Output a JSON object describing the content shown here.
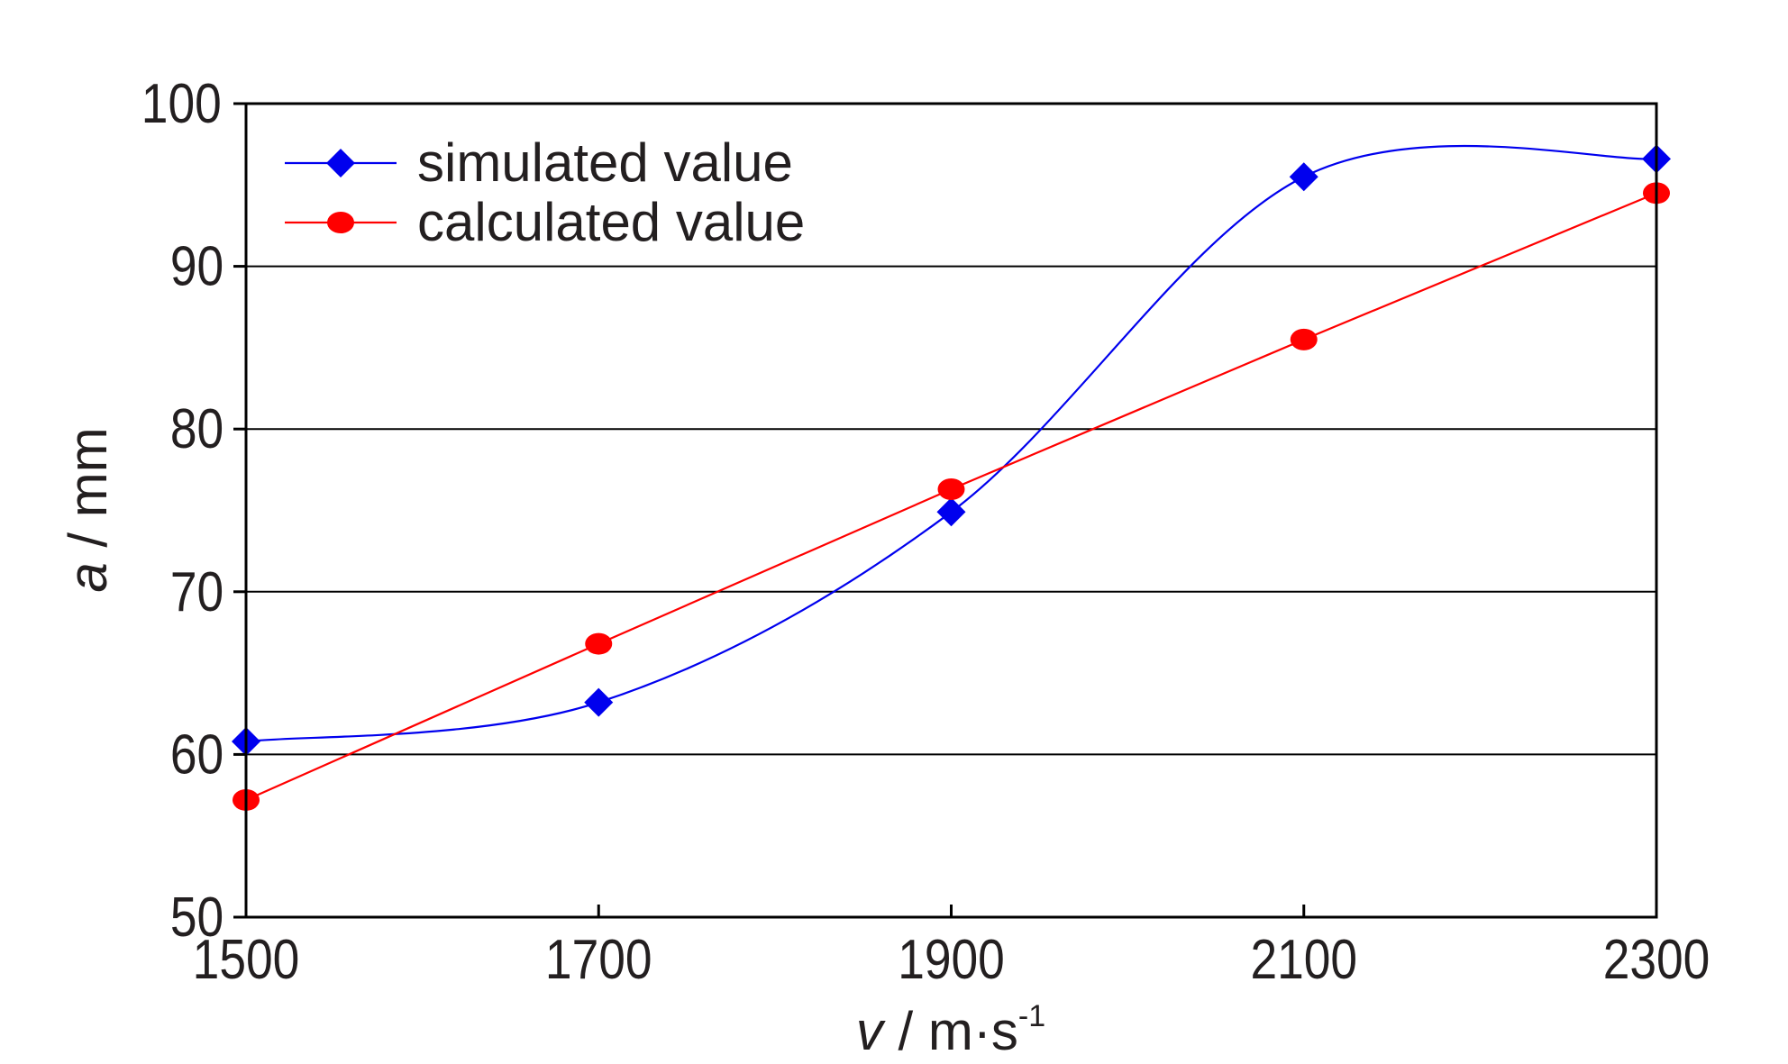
{
  "chart_data": {
    "type": "line",
    "title": "",
    "xlabel": {
      "symbol": "v",
      "unit": " / m·s",
      "exponent": "-1"
    },
    "ylabel": {
      "symbol": "a",
      "unit": " / mm"
    },
    "x": [
      1500,
      1700,
      1900,
      2100,
      2300
    ],
    "xlim": [
      1500,
      2300
    ],
    "ylim": [
      50,
      100
    ],
    "xticks": [
      "1500",
      "1700",
      "1900",
      "2100",
      "2300"
    ],
    "yticks": [
      "50",
      "60",
      "70",
      "80",
      "90",
      "100"
    ],
    "grid": "horizontal",
    "legend_position": "top-left",
    "series": [
      {
        "name": "simulated value",
        "values": [
          60.8,
          63.2,
          74.9,
          95.5,
          96.6
        ],
        "color": "#0000ee",
        "marker": "diamond",
        "smooth": true
      },
      {
        "name": "calculated value",
        "values": [
          57.2,
          66.8,
          76.3,
          85.5,
          94.5
        ],
        "color": "#ff0000",
        "marker": "circle",
        "smooth": false
      }
    ]
  }
}
